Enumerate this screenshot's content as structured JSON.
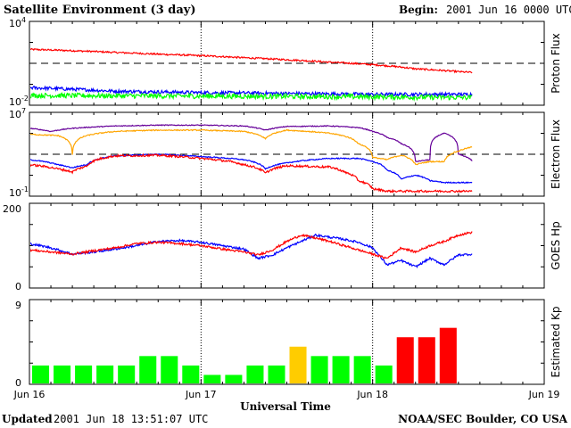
{
  "header": {
    "title": "Satellite Environment (3 day)",
    "begin_label": "Begin:",
    "begin_value": "2001 Jun 16 0000 UTC"
  },
  "footer": {
    "updated_label": "Updated",
    "updated_value": "2001 Jun 18 13:51:07 UTC",
    "source": "NOAA/SEC Boulder, CO USA"
  },
  "colors": {
    "red": "#ff0000",
    "blue": "#0000ff",
    "green": "#00ff00",
    "orange": "#ffa500",
    "purple": "#660099",
    "kp_yellow": "#ffcc00"
  },
  "chart_data": [
    {
      "type": "line",
      "panel": "proton",
      "ylabel": "Proton Flux",
      "yscale": "log",
      "ylim": [
        0.01,
        10000
      ],
      "yticks": [
        {
          "base": "10",
          "exp": "4"
        },
        {
          "base": "10",
          "exp": "-2"
        }
      ],
      "reference_line": 10,
      "x_unit": "hours since 2001 Jun 16 0000 UTC",
      "series": [
        {
          "color": "red",
          "noise": 0.06,
          "points": [
            [
              0,
              100
            ],
            [
              6,
              80
            ],
            [
              12,
              60
            ],
            [
              18,
              45
            ],
            [
              24,
              35
            ],
            [
              30,
              25
            ],
            [
              36,
              18
            ],
            [
              42,
              12
            ],
            [
              48,
              8
            ],
            [
              54,
              4
            ],
            [
              60,
              2.5
            ],
            [
              62,
              2.2
            ]
          ]
        },
        {
          "color": "blue",
          "noise": 0.12,
          "points": [
            [
              0,
              0.18
            ],
            [
              12,
              0.1
            ],
            [
              24,
              0.08
            ],
            [
              36,
              0.07
            ],
            [
              48,
              0.06
            ],
            [
              62,
              0.06
            ]
          ]
        },
        {
          "color": "green",
          "noise": 0.18,
          "points": [
            [
              0,
              0.05
            ],
            [
              24,
              0.045
            ],
            [
              48,
              0.04
            ],
            [
              62,
              0.035
            ]
          ]
        }
      ]
    },
    {
      "type": "line",
      "panel": "electron",
      "ylabel": "Electron Flux",
      "yscale": "log",
      "ylim": [
        0.1,
        10000000
      ],
      "yticks": [
        {
          "base": "10",
          "exp": "7"
        },
        {
          "base": "10",
          "exp": "-1"
        }
      ],
      "reference_line": 1000,
      "series": [
        {
          "color": "purple",
          "noise": 0.04,
          "points": [
            [
              0,
              300000
            ],
            [
              3,
              150000
            ],
            [
              6,
              300000
            ],
            [
              12,
              500000
            ],
            [
              18,
              600000
            ],
            [
              24,
              600000
            ],
            [
              30,
              500000
            ],
            [
              33,
              200000
            ],
            [
              36,
              450000
            ],
            [
              42,
              500000
            ],
            [
              46,
              350000
            ],
            [
              48,
              150000
            ],
            [
              50,
              40000
            ],
            [
              52,
              10000
            ],
            [
              54,
              200
            ],
            [
              56,
              300
            ],
            [
              58,
              100000
            ],
            [
              60,
              1000
            ],
            [
              62,
              200
            ]
          ]
        },
        {
          "color": "orange",
          "noise": 0.05,
          "points": [
            [
              0,
              80000
            ],
            [
              4,
              60000
            ],
            [
              6,
              1000
            ],
            [
              8,
              60000
            ],
            [
              12,
              150000
            ],
            [
              18,
              200000
            ],
            [
              24,
              200000
            ],
            [
              30,
              150000
            ],
            [
              33,
              30000
            ],
            [
              36,
              200000
            ],
            [
              42,
              100000
            ],
            [
              46,
              10000
            ],
            [
              48,
              500
            ],
            [
              50,
              300
            ],
            [
              52,
              800
            ],
            [
              54,
              100
            ],
            [
              56,
              200
            ],
            [
              58,
              200
            ],
            [
              60,
              2000
            ],
            [
              62,
              5000
            ]
          ]
        },
        {
          "color": "blue",
          "noise": 0.05,
          "points": [
            [
              0,
              300
            ],
            [
              4,
              100
            ],
            [
              6,
              50
            ],
            [
              8,
              100
            ],
            [
              12,
              700
            ],
            [
              18,
              1000
            ],
            [
              24,
              600
            ],
            [
              30,
              300
            ],
            [
              33,
              40
            ],
            [
              36,
              150
            ],
            [
              42,
              400
            ],
            [
              46,
              400
            ],
            [
              48,
              200
            ],
            [
              50,
              30
            ],
            [
              52,
              4
            ],
            [
              54,
              10
            ],
            [
              56,
              3
            ],
            [
              58,
              2
            ],
            [
              60,
              2
            ],
            [
              62,
              2
            ]
          ]
        },
        {
          "color": "red",
          "noise": 0.1,
          "points": [
            [
              0,
              100
            ],
            [
              4,
              40
            ],
            [
              6,
              20
            ],
            [
              8,
              70
            ],
            [
              12,
              700
            ],
            [
              18,
              800
            ],
            [
              24,
              400
            ],
            [
              30,
              100
            ],
            [
              33,
              15
            ],
            [
              36,
              80
            ],
            [
              42,
              60
            ],
            [
              44,
              20
            ],
            [
              46,
              3
            ],
            [
              48,
              0.5
            ],
            [
              50,
              0.3
            ],
            [
              52,
              0.3
            ],
            [
              54,
              0.3
            ],
            [
              56,
              0.3
            ],
            [
              58,
              0.3
            ],
            [
              60,
              0.3
            ],
            [
              62,
              0.3
            ]
          ]
        }
      ]
    },
    {
      "type": "line",
      "panel": "goes_hp",
      "ylabel": "GOES Hp",
      "ylim": [
        0,
        200
      ],
      "yticks": [
        "200",
        "0"
      ],
      "series": [
        {
          "color": "blue",
          "noise": 2.5,
          "points": [
            [
              0,
              105
            ],
            [
              3,
              95
            ],
            [
              6,
              80
            ],
            [
              9,
              85
            ],
            [
              12,
              92
            ],
            [
              15,
              100
            ],
            [
              18,
              110
            ],
            [
              21,
              112
            ],
            [
              24,
              108
            ],
            [
              27,
              100
            ],
            [
              30,
              92
            ],
            [
              32,
              70
            ],
            [
              34,
              78
            ],
            [
              36,
              95
            ],
            [
              38,
              110
            ],
            [
              40,
              125
            ],
            [
              42,
              120
            ],
            [
              44,
              115
            ],
            [
              46,
              108
            ],
            [
              48,
              95
            ],
            [
              50,
              55
            ],
            [
              52,
              65
            ],
            [
              54,
              50
            ],
            [
              56,
              70
            ],
            [
              58,
              55
            ],
            [
              60,
              78
            ],
            [
              62,
              80
            ]
          ]
        },
        {
          "color": "red",
          "noise": 2.5,
          "points": [
            [
              0,
              90
            ],
            [
              3,
              85
            ],
            [
              6,
              80
            ],
            [
              9,
              88
            ],
            [
              12,
              95
            ],
            [
              15,
              105
            ],
            [
              18,
              108
            ],
            [
              21,
              105
            ],
            [
              24,
              100
            ],
            [
              27,
              92
            ],
            [
              30,
              85
            ],
            [
              32,
              78
            ],
            [
              34,
              90
            ],
            [
              36,
              110
            ],
            [
              38,
              125
            ],
            [
              40,
              118
            ],
            [
              42,
              110
            ],
            [
              44,
              100
            ],
            [
              46,
              90
            ],
            [
              48,
              80
            ],
            [
              50,
              70
            ],
            [
              52,
              95
            ],
            [
              54,
              85
            ],
            [
              56,
              100
            ],
            [
              58,
              110
            ],
            [
              60,
              125
            ],
            [
              62,
              132
            ]
          ]
        }
      ]
    },
    {
      "type": "bar",
      "panel": "kp",
      "ylabel": "Estimated Kp",
      "ylim": [
        0,
        9
      ],
      "yticks": [
        "9",
        "0"
      ],
      "bar_interval_hours": 3,
      "values": [
        2,
        2,
        2,
        2,
        2,
        3,
        3,
        2,
        1,
        1,
        2,
        2,
        4,
        3,
        3,
        3,
        2,
        5,
        5,
        6
      ],
      "value_colors": [
        "green",
        "green",
        "green",
        "green",
        "green",
        "green",
        "green",
        "green",
        "green",
        "green",
        "green",
        "green",
        "kp_yellow",
        "green",
        "green",
        "green",
        "green",
        "red",
        "red",
        "red"
      ]
    }
  ],
  "x_axis": {
    "label": "Universal Time",
    "range_hours": [
      0,
      72
    ],
    "ticks": [
      {
        "hour": 0,
        "label": "Jun 16"
      },
      {
        "hour": 24,
        "label": "Jun 17"
      },
      {
        "hour": 48,
        "label": "Jun 18"
      },
      {
        "hour": 72,
        "label": "Jun 19"
      }
    ],
    "day_dividers": [
      24,
      48
    ]
  }
}
